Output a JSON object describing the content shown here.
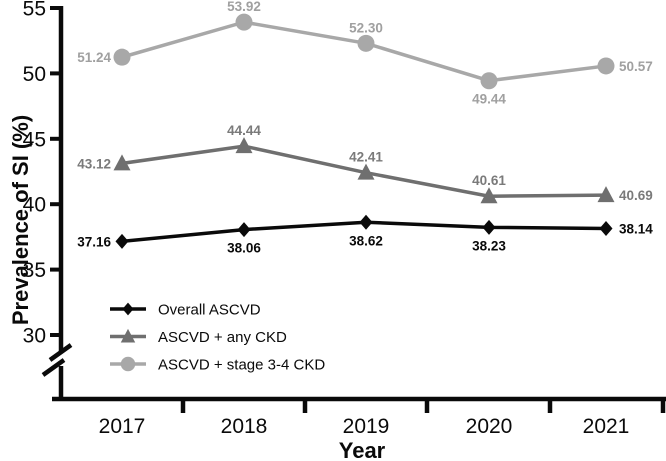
{
  "chart_data": {
    "type": "line",
    "title": "",
    "xlabel": "Year",
    "ylabel": "Prevalence of SI (%)",
    "categories": [
      "2017",
      "2018",
      "2019",
      "2020",
      "2021"
    ],
    "yticks": [
      "55",
      "50",
      "45",
      "40",
      "35",
      "30"
    ],
    "ylim": [
      30,
      55
    ],
    "y_axis_break": true,
    "grid": false,
    "legend_position": "inside-lower-left",
    "axis_color": "#0a0a0a",
    "series": [
      {
        "name": "Overall ASCVD",
        "marker": "diamond",
        "color": "#0a0a0a",
        "label_color": "#0a0a0a",
        "values": [
          37.16,
          38.06,
          38.62,
          38.23,
          38.14
        ],
        "point_labels": [
          "37.16",
          "38.06",
          "38.62",
          "38.23",
          "38.14"
        ],
        "label_placement": [
          "left",
          "below",
          "below",
          "below",
          "right"
        ]
      },
      {
        "name": "ASCVD + any CKD",
        "marker": "triangle",
        "color": "#6f6f6f",
        "label_color": "#7a7a7a",
        "values": [
          43.12,
          44.44,
          42.41,
          40.61,
          40.69
        ],
        "point_labels": [
          "43.12",
          "44.44",
          "42.41",
          "40.61",
          "40.69"
        ],
        "label_placement": [
          "left",
          "above",
          "above",
          "above",
          "right"
        ]
      },
      {
        "name": "ASCVD + stage 3-4 CKD",
        "marker": "circle",
        "color": "#a8a8a8",
        "label_color": "#a0a0a0",
        "values": [
          51.24,
          53.92,
          52.3,
          49.44,
          50.57
        ],
        "point_labels": [
          "51.24",
          "53.92",
          "52.30",
          "49.44",
          "50.57"
        ],
        "label_placement": [
          "left",
          "above",
          "above",
          "below",
          "right"
        ]
      }
    ]
  }
}
